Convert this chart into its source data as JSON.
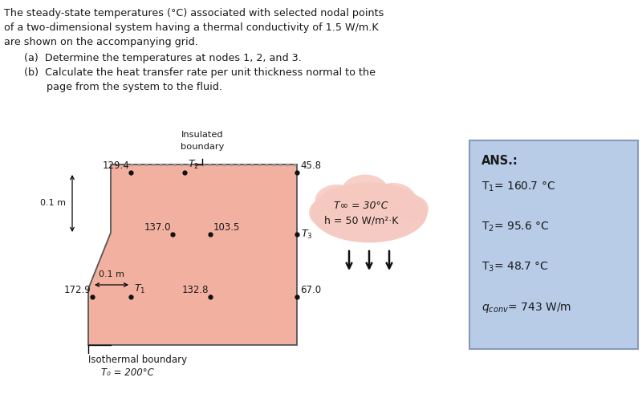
{
  "title_line1": "The steady-state temperatures (°C) associated with selected nodal points",
  "title_line2": "of a two-dimensional system having a thermal conductivity of 1.5 W/m.K",
  "title_line3": "are shown on the accompanying grid.",
  "item_a": "(a)  Determine the temperatures at nodes 1, 2, and 3.",
  "item_b1": "(b)  Calculate the heat transfer rate per unit thickness normal to the",
  "item_b2": "       page from the system to the fluid.",
  "insulated_label1": "Insulated",
  "insulated_label2": "boundary",
  "isothermal_label1": "Isothermal boundary",
  "isothermal_label2": "T₀ = 200°C",
  "dim_01m_vert": "0.1 m",
  "dim_01m_horiz": "0.1 m",
  "fluid_label1": "T∞ = 30°C",
  "fluid_label2": "h = 50 W/m²·K",
  "ans_title": "ANS.:",
  "ans_T1": "T₁= 160.7 °C",
  "ans_T2": "T₂= 95.6 °C",
  "ans_T3": "T₃= 48.7 °C",
  "grid_color": "#f2b0a0",
  "ans_box_color_top": "#b8cce8",
  "ans_box_color_bot": "#d8e8f8",
  "fluid_color": "#f5c8c0",
  "background_color": "#ffffff",
  "text_color": "#1a1a1a",
  "node_color": "#111111",
  "border_color": "#555555"
}
